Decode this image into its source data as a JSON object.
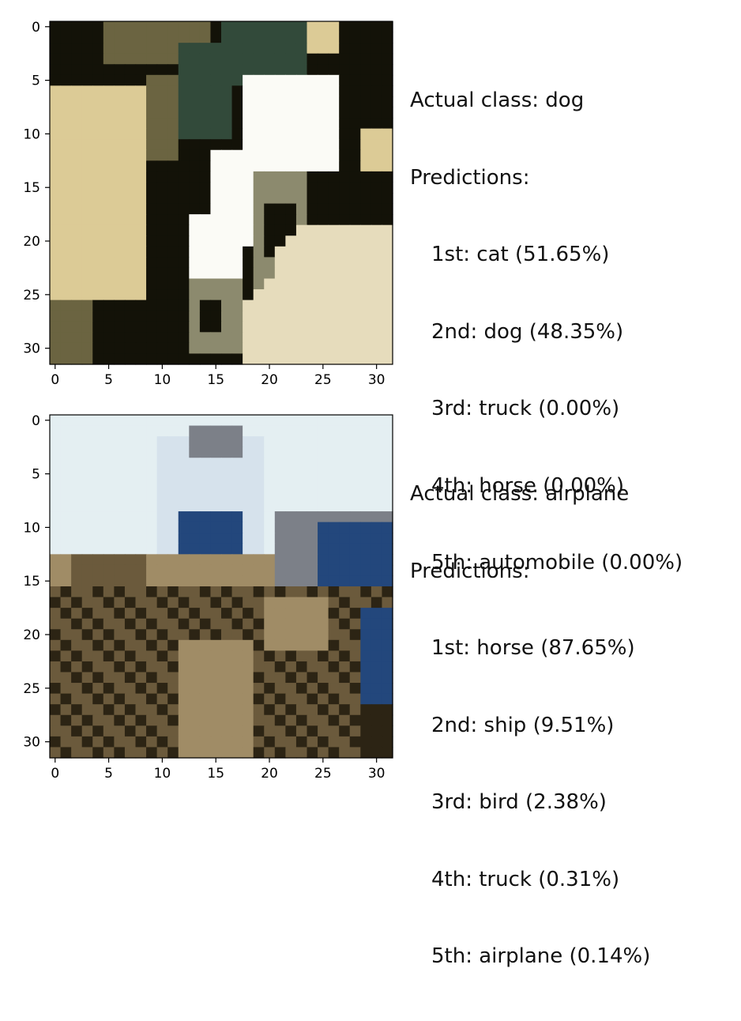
{
  "panels": [
    {
      "actual_label": "Actual class: dog",
      "predictions_header": "Predictions:",
      "predictions": [
        "1st: cat (51.65%)",
        "2nd: dog (48.35%)",
        "3rd: truck (0.00%)",
        "4th: horse (0.00%)",
        "5th: automobile (0.00%)"
      ]
    },
    {
      "actual_label": "Actual class: airplane",
      "predictions_header": "Predictions:",
      "predictions": [
        "1st: horse (87.65%)",
        "2nd: ship (9.51%)",
        "3rd: bird (2.38%)",
        "4th: truck (0.31%)",
        "5th: airplane (0.14%)"
      ]
    }
  ],
  "chart_data": [
    {
      "type": "image",
      "image_size": [
        32,
        32
      ],
      "x_ticks": [
        0,
        5,
        10,
        15,
        20,
        25,
        30
      ],
      "y_ticks": [
        0,
        5,
        10,
        15,
        20,
        25,
        30
      ],
      "x_tick_labels": [
        "0",
        "5",
        "10",
        "15",
        "20",
        "25",
        "30"
      ],
      "y_tick_labels": [
        "0",
        "5",
        "10",
        "15",
        "20",
        "25",
        "30"
      ],
      "xlim": [
        -0.5,
        31.5
      ],
      "ylim": [
        31.5,
        -0.5
      ],
      "colors": {
        "black": "#131208",
        "tan": "#dccb96",
        "cream": "#e6dcbc",
        "white": "#fbfbf6",
        "grey": "#8c8a6e",
        "teal": "#324a3a",
        "olive": "#6b6441"
      }
    },
    {
      "type": "image",
      "image_size": [
        32,
        32
      ],
      "x_ticks": [
        0,
        5,
        10,
        15,
        20,
        25,
        30
      ],
      "y_ticks": [
        0,
        5,
        10,
        15,
        20,
        25,
        30
      ],
      "x_tick_labels": [
        "0",
        "5",
        "10",
        "15",
        "20",
        "25",
        "30"
      ],
      "y_tick_labels": [
        "0",
        "5",
        "10",
        "15",
        "20",
        "25",
        "30"
      ],
      "xlim": [
        -0.5,
        31.5
      ],
      "ylim": [
        31.5,
        -0.5
      ],
      "colors": {
        "sky": "#e4eff2",
        "pale": "#d6e2ec",
        "blue": "#23477c",
        "brown": "#6b5a3c",
        "dark": "#2c2414",
        "tan": "#a08c66",
        "grey": "#7c8088"
      }
    }
  ]
}
